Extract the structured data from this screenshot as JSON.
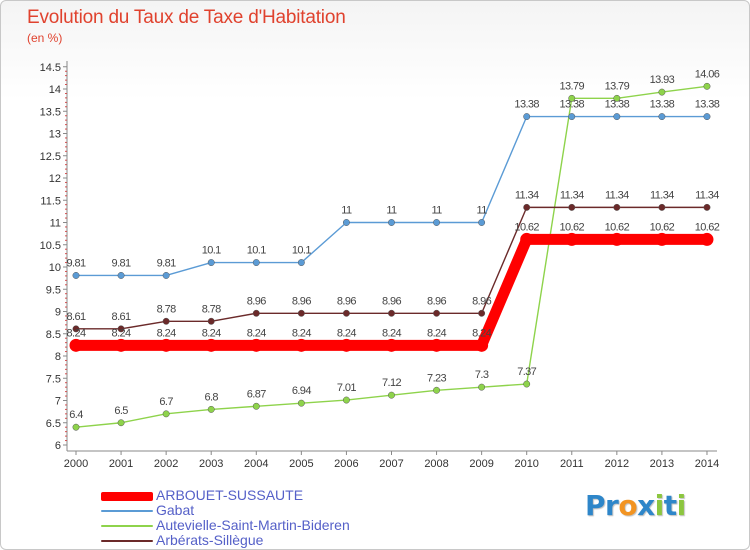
{
  "chart_data": {
    "type": "line",
    "title": "Evolution du Taux de Taxe d'Habitation",
    "subtitle": "(en %)",
    "x": [
      "2000",
      "2001",
      "2002",
      "2003",
      "2004",
      "2005",
      "2006",
      "2007",
      "2008",
      "2009",
      "2010",
      "2011",
      "2012",
      "2013",
      "2014"
    ],
    "ylim": [
      6,
      14.5
    ],
    "yticks": [
      "6",
      "6.5",
      "7",
      "7.5",
      "8",
      "8.5",
      "9",
      "9.5",
      "10",
      "10.5",
      "11",
      "11.5",
      "12",
      "12.5",
      "13",
      "13.5",
      "14",
      "14.5"
    ],
    "grid": false,
    "legend_position": "bottom-left",
    "series": [
      {
        "name": "ARBOUET-SUSSAUTE",
        "color": "#ff0000",
        "values": [
          8.24,
          8.24,
          8.24,
          8.24,
          8.24,
          8.24,
          8.24,
          8.24,
          8.24,
          8.24,
          10.62,
          10.62,
          10.62,
          10.62,
          10.62
        ],
        "labels": [
          "8.24",
          "8.24",
          "8.24",
          "8.24",
          "8.24",
          "8.24",
          "8.24",
          "8.24",
          "8.24",
          "8.24",
          "10.62",
          "10.62",
          "10.62",
          "10.62",
          "10.62"
        ]
      },
      {
        "name": "Gabat",
        "color": "#5b9bd5",
        "values": [
          9.81,
          9.81,
          9.81,
          10.1,
          10.1,
          10.1,
          11,
          11,
          11,
          11,
          13.38,
          13.38,
          13.38,
          13.38,
          13.38
        ],
        "labels": [
          "9.81",
          "9.81",
          "9.81",
          "10.1",
          "10.1",
          "10.1",
          "11",
          "11",
          "11",
          "11",
          "13.38",
          "13.38",
          "13.38",
          "13.38",
          "13.38"
        ]
      },
      {
        "name": "Autevielle-Saint-Martin-Bideren",
        "color": "#8ed34b",
        "values": [
          6.4,
          6.5,
          6.7,
          6.8,
          6.87,
          6.94,
          7.01,
          7.12,
          7.23,
          7.3,
          7.37,
          13.79,
          13.79,
          13.93,
          14.06
        ],
        "labels": [
          "6.4",
          "6.5",
          "6.7",
          "6.8",
          "6.87",
          "6.94",
          "7.01",
          "7.12",
          "7.23",
          "7.3",
          "7.37",
          "13.79",
          "13.79",
          "13.93",
          "14.06"
        ]
      },
      {
        "name": "Arbérats-Sillègue",
        "color": "#6b2a2a",
        "values": [
          8.61,
          8.61,
          8.78,
          8.78,
          8.96,
          8.96,
          8.96,
          8.96,
          8.96,
          8.96,
          11.34,
          11.34,
          11.34,
          11.34,
          11.34
        ],
        "labels": [
          "8.61",
          "8.61",
          "8.78",
          "8.78",
          "8.96",
          "8.96",
          "8.96",
          "8.96",
          "8.96",
          "8.96",
          "11.34",
          "11.34",
          "11.34",
          "11.34",
          "11.34"
        ]
      }
    ]
  },
  "logo": {
    "letters": [
      "P",
      "r",
      "o",
      "x",
      "i",
      "t",
      "i"
    ],
    "colors": [
      "#2e86c9",
      "#2e86c9",
      "#f29422",
      "#2e86c9",
      "#8cc63f",
      "#2e86c9",
      "#8cc63f"
    ]
  }
}
